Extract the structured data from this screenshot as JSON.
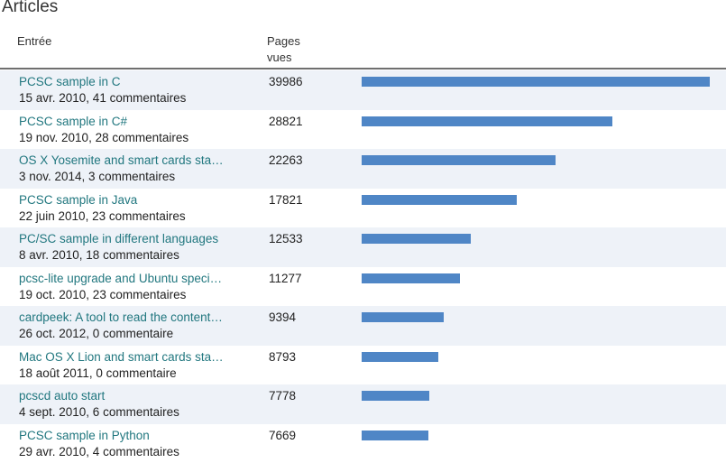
{
  "section_title": "Articles",
  "columns": {
    "entry": "Entrée",
    "pageviews": "Pages vues"
  },
  "colors": {
    "link": "#21777f",
    "bar": "#4f86c6",
    "row_shade": "#eef2f8"
  },
  "articles": [
    {
      "title": "PCSC sample in C",
      "meta": "15 avr. 2010, 41 commentaires",
      "views": 39986
    },
    {
      "title": "PCSC sample in C#",
      "meta": "19 nov. 2010, 28 commentaires",
      "views": 28821
    },
    {
      "title": "OS X Yosemite and smart cards sta…",
      "meta": "3 nov. 2014, 3 commentaires",
      "views": 22263
    },
    {
      "title": "PCSC sample in Java",
      "meta": "22 juin 2010, 23 commentaires",
      "views": 17821
    },
    {
      "title": "PC/SC sample in different languages",
      "meta": "8 avr. 2010, 18 commentaires",
      "views": 12533
    },
    {
      "title": "pcsc-lite upgrade and Ubuntu speci…",
      "meta": "19 oct. 2010, 23 commentaires",
      "views": 11277
    },
    {
      "title": "cardpeek: A tool to read the content…",
      "meta": "26 oct. 2012, 0 commentaire",
      "views": 9394
    },
    {
      "title": "Mac OS X Lion and smart cards sta…",
      "meta": "18 août 2011, 0 commentaire",
      "views": 8793
    },
    {
      "title": "pcscd auto start",
      "meta": "4 sept. 2010, 6 commentaires",
      "views": 7778
    },
    {
      "title": "PCSC sample in Python",
      "meta": "29 avr. 2010, 4 commentaires",
      "views": 7669
    }
  ]
}
